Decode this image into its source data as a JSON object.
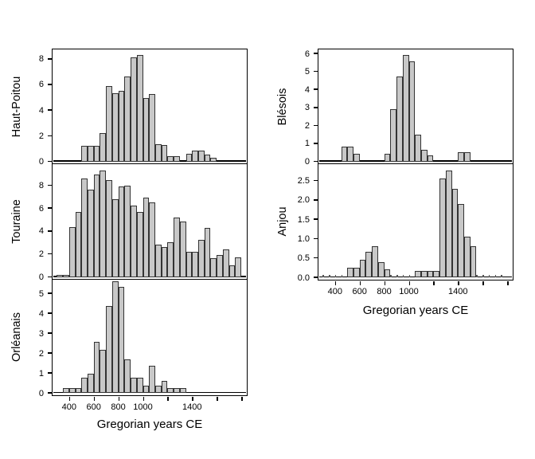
{
  "figure": {
    "background": "#ffffff",
    "bar_fill": "#c8c8c8",
    "bar_stroke": "#333333",
    "axis_color": "#000000",
    "text_color": "#000000"
  },
  "chart_data": {
    "type": "bar",
    "subtype": "histogram-panel-grid",
    "xlabel": "Gregorian years CE",
    "x_domain": [
      265,
      1845
    ],
    "x_ticks": [
      400,
      600,
      800,
      1000,
      1200,
      1400,
      1600,
      1800
    ],
    "x_labeled_ticks": [
      400,
      600,
      800,
      1000,
      1400
    ],
    "bin_width_years": 50,
    "grid": "off",
    "legend": "none",
    "panels": [
      {
        "region": "Haut-Poitou",
        "column": "left",
        "row": 0,
        "ymax": 8.7,
        "yticks": [
          0,
          2,
          4,
          6,
          8
        ],
        "ytick_labels": [
          "0",
          "2",
          "4",
          "6",
          "8"
        ],
        "bin_start_year": 500,
        "counts": [
          1.2,
          1.2,
          1.2,
          2.2,
          5.9,
          5.3,
          5.5,
          6.65,
          8.1,
          8.3,
          4.95,
          5.25,
          1.35,
          1.3,
          0.4,
          0.4,
          0,
          0.6,
          0.85,
          0.85,
          0.5,
          0.3
        ],
        "show_zero_bins": false
      },
      {
        "region": "Touraine",
        "column": "left",
        "row": 1,
        "ymax": 9.8,
        "yticks": [
          0,
          2,
          4,
          6,
          8
        ],
        "ytick_labels": [
          "0",
          "2",
          "4",
          "6",
          "8"
        ],
        "bin_start_year": 300,
        "counts": [
          0.15,
          0.15,
          4.35,
          5.7,
          8.6,
          7.6,
          8.9,
          9.3,
          8.45,
          6.75,
          7.9,
          7.95,
          6.2,
          5.7,
          6.9,
          6.5,
          2.85,
          2.6,
          3.05,
          5.2,
          4.8,
          2.2,
          2.2,
          3.2,
          4.3,
          1.65,
          1.9,
          2.4,
          1.0,
          1.7
        ],
        "show_zero_bins": false
      },
      {
        "region": "Orléanais",
        "column": "left",
        "row": 2,
        "ymax": 5.65,
        "yticks": [
          0,
          1,
          2,
          3,
          4,
          5
        ],
        "ytick_labels": [
          "0",
          "1",
          "2",
          "3",
          "4",
          "5"
        ],
        "bin_start_year": 350,
        "counts": [
          0.25,
          0.25,
          0.25,
          0.75,
          0.97,
          2.58,
          2.17,
          4.35,
          5.62,
          5.35,
          1.7,
          0.75,
          0.75,
          0.35,
          1.35,
          0.35,
          0.6,
          0.25,
          0.25,
          0.25
        ],
        "show_zero_bins": false
      },
      {
        "region": "Blésois",
        "column": "right",
        "row": 0,
        "ymax": 6.2,
        "yticks": [
          0,
          1,
          2,
          3,
          4,
          5,
          6
        ],
        "ytick_labels": [
          "0",
          "1",
          "2",
          "3",
          "4",
          "5",
          "6"
        ],
        "bin_start_year": 450,
        "counts": [
          0.8,
          0.8,
          0.4,
          0,
          0,
          0,
          0,
          0.4,
          2.9,
          4.7,
          5.9,
          5.55,
          1.5,
          0.65,
          0.35,
          0,
          0,
          0,
          0,
          0.5,
          0.5
        ],
        "show_zero_bins": false
      },
      {
        "region": "Anjou",
        "column": "right",
        "row": 1,
        "ymax": 2.9,
        "yticks": [
          0,
          0.5,
          1.0,
          1.5,
          2.0,
          2.5
        ],
        "ytick_labels": [
          "0.0",
          "0.5",
          "1.0",
          "1.5",
          "2.0",
          "2.5"
        ],
        "bin_start_year": 300,
        "counts": [
          0,
          0,
          0,
          0,
          0.25,
          0.25,
          0.45,
          0.65,
          0.8,
          0.4,
          0.2,
          0,
          0,
          0,
          0,
          0.17,
          0.17,
          0.17,
          0.17,
          2.55,
          2.75,
          2.28,
          1.9,
          1.05,
          0.8,
          0,
          0,
          0,
          0,
          0
        ],
        "show_zero_bins": true
      }
    ]
  }
}
